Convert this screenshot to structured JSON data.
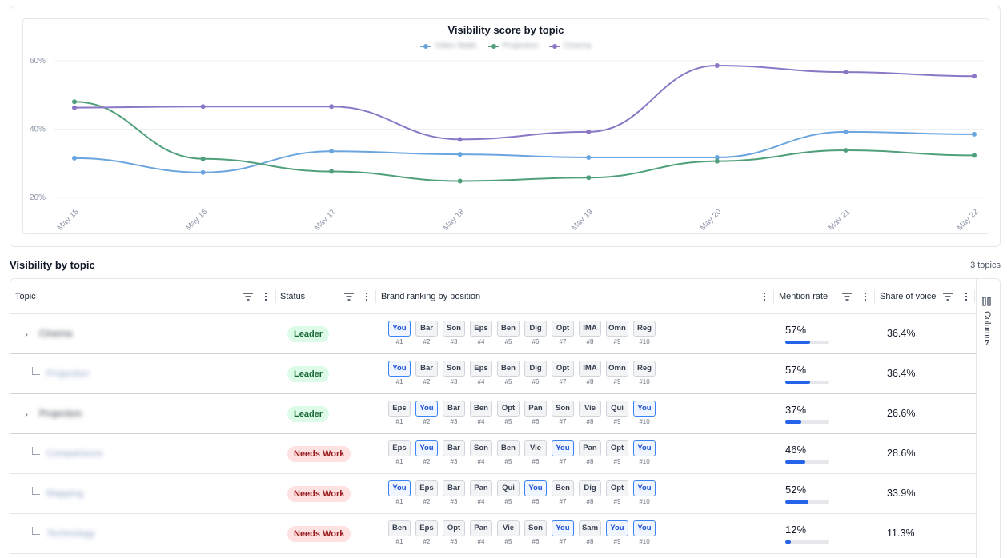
{
  "chart": {
    "title": "Visibility score by topic",
    "legend": [
      {
        "label": "Video Walls",
        "color": "#6aa5e0"
      },
      {
        "label": "Projection",
        "color": "#4fa07a"
      },
      {
        "label": "Cinema",
        "color": "#8a78c6"
      }
    ]
  },
  "chart_data": {
    "type": "line",
    "title": "Visibility score by topic",
    "x": [
      "May 15",
      "May 16",
      "May 17",
      "May 18",
      "May 19",
      "May 20",
      "May 21",
      "May 22"
    ],
    "y_ticks": [
      "20%",
      "40%",
      "60%"
    ],
    "ylim": [
      20,
      60
    ],
    "grid": true,
    "legend_position": "top",
    "series": [
      {
        "name": "Video Walls",
        "color": "#6aa5e0",
        "values": [
          31.5,
          27.3,
          33.5,
          32.6,
          31.7,
          31.7,
          39.2,
          38.5
        ]
      },
      {
        "name": "Projection",
        "color": "#4fa07a",
        "values": [
          48.0,
          31.3,
          27.6,
          24.8,
          25.8,
          30.6,
          33.8,
          32.3
        ]
      },
      {
        "name": "Cinema",
        "color": "#8a78c6",
        "values": [
          46.3,
          46.6,
          46.6,
          37.0,
          39.2,
          58.6,
          56.7,
          55.5
        ]
      }
    ]
  },
  "section": {
    "title": "Visibility by topic",
    "count": "3 topics"
  },
  "table": {
    "headers": {
      "topic": "Topic",
      "status": "Status",
      "ranking": "Brand ranking by position",
      "mention": "Mention rate",
      "sov": "Share of voice"
    },
    "side_panel_label": "Columns",
    "rows": [
      {
        "kind": "parent",
        "topic": "Cinema",
        "status": "Leader",
        "status_type": "leader",
        "ranks": [
          {
            "b": "You",
            "p": "#1",
            "you": true
          },
          {
            "b": "Bar",
            "p": "#2"
          },
          {
            "b": "Son",
            "p": "#3"
          },
          {
            "b": "Eps",
            "p": "#4"
          },
          {
            "b": "Ben",
            "p": "#5"
          },
          {
            "b": "Dig",
            "p": "#6"
          },
          {
            "b": "Opt",
            "p": "#7"
          },
          {
            "b": "IMA",
            "p": "#8"
          },
          {
            "b": "Omn",
            "p": "#9"
          },
          {
            "b": "Reg",
            "p": "#10"
          }
        ],
        "mention": "57%",
        "mention_value": 0.57,
        "sov": "36.4%"
      },
      {
        "kind": "child",
        "topic": "Projection",
        "status": "Leader",
        "status_type": "leader",
        "ranks": [
          {
            "b": "You",
            "p": "#1",
            "you": true
          },
          {
            "b": "Bar",
            "p": "#2"
          },
          {
            "b": "Son",
            "p": "#3"
          },
          {
            "b": "Eps",
            "p": "#4"
          },
          {
            "b": "Ben",
            "p": "#5"
          },
          {
            "b": "Dig",
            "p": "#6"
          },
          {
            "b": "Opt",
            "p": "#7"
          },
          {
            "b": "IMA",
            "p": "#8"
          },
          {
            "b": "Omn",
            "p": "#9"
          },
          {
            "b": "Reg",
            "p": "#10"
          }
        ],
        "mention": "57%",
        "mention_value": 0.57,
        "sov": "36.4%"
      },
      {
        "kind": "parent",
        "topic": "Projection",
        "status": "Leader",
        "status_type": "leader",
        "ranks": [
          {
            "b": "Eps",
            "p": "#1"
          },
          {
            "b": "You",
            "p": "#2",
            "you": true
          },
          {
            "b": "Bar",
            "p": "#3"
          },
          {
            "b": "Ben",
            "p": "#4"
          },
          {
            "b": "Opt",
            "p": "#5"
          },
          {
            "b": "Pan",
            "p": "#6"
          },
          {
            "b": "Son",
            "p": "#7"
          },
          {
            "b": "Vie",
            "p": "#8"
          },
          {
            "b": "Qui",
            "p": "#9"
          },
          {
            "b": "You",
            "p": "#10",
            "you": true
          }
        ],
        "mention": "37%",
        "mention_value": 0.37,
        "sov": "26.6%"
      },
      {
        "kind": "child",
        "topic": "Comparisons",
        "status": "Needs Work",
        "status_type": "needs",
        "ranks": [
          {
            "b": "Eps",
            "p": "#1"
          },
          {
            "b": "You",
            "p": "#2",
            "you": true
          },
          {
            "b": "Bar",
            "p": "#3"
          },
          {
            "b": "Son",
            "p": "#4"
          },
          {
            "b": "Ben",
            "p": "#5"
          },
          {
            "b": "Vie",
            "p": "#6"
          },
          {
            "b": "You",
            "p": "#7",
            "you": true
          },
          {
            "b": "Pan",
            "p": "#8"
          },
          {
            "b": "Opt",
            "p": "#9"
          },
          {
            "b": "You",
            "p": "#10",
            "you": true
          }
        ],
        "mention": "46%",
        "mention_value": 0.46,
        "sov": "28.6%"
      },
      {
        "kind": "child",
        "topic": "Mapping",
        "status": "Needs Work",
        "status_type": "needs",
        "ranks": [
          {
            "b": "You",
            "p": "#1",
            "you": true
          },
          {
            "b": "Eps",
            "p": "#2"
          },
          {
            "b": "Bar",
            "p": "#3"
          },
          {
            "b": "Pan",
            "p": "#4"
          },
          {
            "b": "Qui",
            "p": "#5"
          },
          {
            "b": "You",
            "p": "#6",
            "you": true
          },
          {
            "b": "Ben",
            "p": "#7"
          },
          {
            "b": "Dig",
            "p": "#8"
          },
          {
            "b": "Opt",
            "p": "#9"
          },
          {
            "b": "You",
            "p": "#10",
            "you": true
          }
        ],
        "mention": "52%",
        "mention_value": 0.52,
        "sov": "33.9%"
      },
      {
        "kind": "child",
        "topic": "Technology",
        "status": "Needs Work",
        "status_type": "needs",
        "ranks": [
          {
            "b": "Ben",
            "p": "#1"
          },
          {
            "b": "Eps",
            "p": "#2"
          },
          {
            "b": "Opt",
            "p": "#3"
          },
          {
            "b": "Pan",
            "p": "#4"
          },
          {
            "b": "Vie",
            "p": "#5"
          },
          {
            "b": "Son",
            "p": "#6"
          },
          {
            "b": "You",
            "p": "#7",
            "you": true
          },
          {
            "b": "Sam",
            "p": "#8"
          },
          {
            "b": "You",
            "p": "#9",
            "you": true
          },
          {
            "b": "You",
            "p": "#10",
            "you": true
          }
        ],
        "mention": "12%",
        "mention_value": 0.12,
        "sov": "11.3%"
      }
    ]
  }
}
